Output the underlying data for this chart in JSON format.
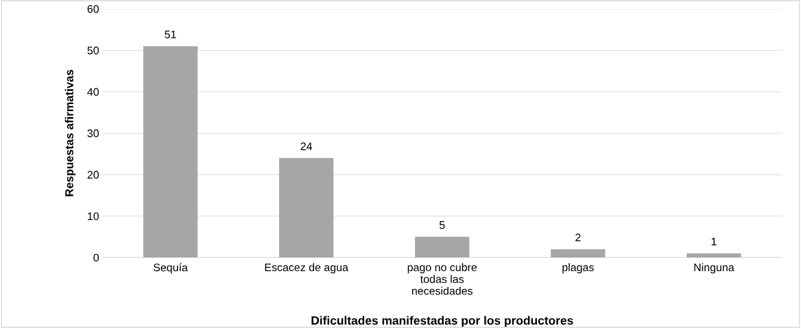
{
  "chart_data": {
    "type": "bar",
    "categories": [
      "Sequía",
      "Escacez de agua",
      "pago no cubre\ntodas las\nnecesidades",
      "plagas",
      "Ninguna"
    ],
    "values": [
      51,
      24,
      5,
      2,
      1
    ],
    "color": "#a6a6a6",
    "xlabel": "Dificultades manifestadas por los productores",
    "ylabel": "Respuestas afirmativas",
    "ylim": [
      0,
      60
    ],
    "yticks": [
      0,
      10,
      20,
      30,
      40,
      50,
      60
    ],
    "grid": "y",
    "data_labels": true
  }
}
